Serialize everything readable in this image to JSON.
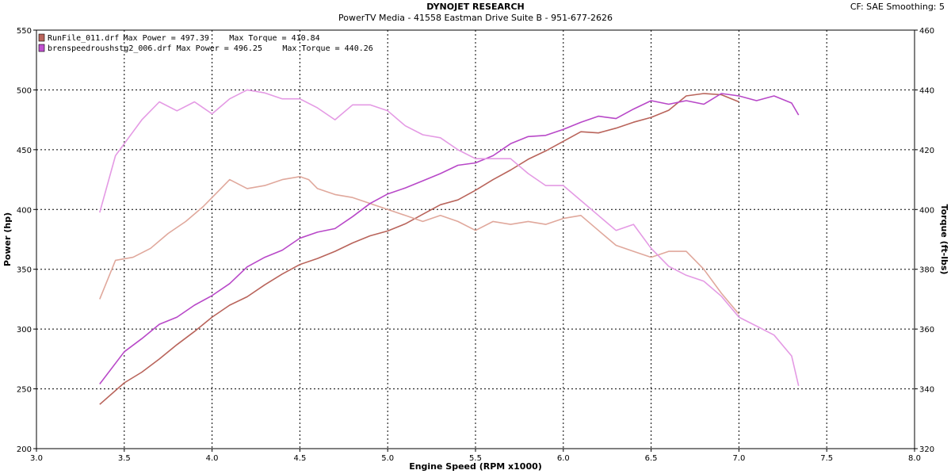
{
  "header": {
    "title": "DYNOJET RESEARCH",
    "subtitle": "PowerTV Media - 41558 Eastman Drive Suite B - 951-677-2626",
    "correction": "CF: SAE  Smoothing: 5"
  },
  "chart_data": {
    "type": "line",
    "xlabel": "Engine Speed (RPM x1000)",
    "ylabel": "Power (hp)",
    "y2label": "Torque (ft-lbs)",
    "xlim": [
      3.0,
      8.0
    ],
    "ylim": [
      200,
      550
    ],
    "y2lim": [
      320,
      460
    ],
    "grid": true,
    "x_ticks": [
      "3.0",
      "3.5",
      "4.0",
      "4.5",
      "5.0",
      "5.5",
      "6.0",
      "6.5",
      "7.0",
      "7.5",
      "8.0"
    ],
    "y_ticks": [
      "200",
      "250",
      "300",
      "350",
      "400",
      "450",
      "500",
      "550"
    ],
    "y2_ticks": [
      "320",
      "340",
      "360",
      "380",
      "400",
      "420",
      "440",
      "460"
    ],
    "legend_position": "top-left",
    "legend": [
      {
        "name": "RunFile_011.drf",
        "max_power_label": "Max Power = 497.39",
        "max_torque_label": "Max Torque = 410.84",
        "color": "#b9645b"
      },
      {
        "name": "brenspeedroushstg2_006.drf",
        "max_power_label": "Max Power = 496.25",
        "max_torque_label": "Max Torque = 440.26",
        "color": "#c050d0"
      }
    ],
    "series": [
      {
        "name": "RunFile_011.drf",
        "kind": "power",
        "axis": "left",
        "color": "#b9645b",
        "x": [
          3.36,
          3.5,
          3.6,
          3.7,
          3.8,
          3.9,
          4.0,
          4.1,
          4.2,
          4.3,
          4.4,
          4.5,
          4.6,
          4.7,
          4.8,
          4.9,
          5.0,
          5.1,
          5.2,
          5.3,
          5.4,
          5.5,
          5.6,
          5.7,
          5.8,
          5.9,
          6.0,
          6.1,
          6.2,
          6.3,
          6.4,
          6.5,
          6.6,
          6.7,
          6.8,
          6.9,
          7.0
        ],
        "y": [
          237,
          255,
          264,
          275,
          287,
          298,
          310,
          320,
          327,
          337,
          346,
          354,
          359,
          365,
          372,
          378,
          382,
          388,
          396,
          404,
          408,
          416,
          425,
          433,
          442,
          449,
          457,
          465,
          464,
          468,
          473,
          477,
          483,
          495,
          497,
          496,
          490
        ]
      },
      {
        "name": "RunFile_011.drf",
        "kind": "torque",
        "axis": "right",
        "color": "#e0a89c",
        "x": [
          3.36,
          3.45,
          3.55,
          3.65,
          3.75,
          3.85,
          3.95,
          4.05,
          4.1,
          4.2,
          4.3,
          4.4,
          4.5,
          4.55,
          4.6,
          4.7,
          4.8,
          4.9,
          5.0,
          5.1,
          5.2,
          5.3,
          5.4,
          5.5,
          5.6,
          5.7,
          5.8,
          5.9,
          6.0,
          6.1,
          6.2,
          6.3,
          6.4,
          6.5,
          6.6,
          6.7,
          6.8,
          6.9,
          7.0
        ],
        "y": [
          370,
          383,
          384,
          387,
          392,
          396,
          401,
          407,
          410,
          407,
          408,
          410,
          411,
          410,
          407,
          405,
          404,
          402,
          400,
          398,
          396,
          398,
          396,
          393,
          396,
          395,
          396,
          395,
          397,
          398,
          393,
          388,
          386,
          384,
          386,
          386,
          380,
          372,
          365
        ]
      },
      {
        "name": "brenspeedroushstg2_006.drf",
        "kind": "power",
        "axis": "left",
        "color": "#b848c8",
        "x": [
          3.36,
          3.5,
          3.6,
          3.7,
          3.8,
          3.9,
          4.0,
          4.1,
          4.2,
          4.3,
          4.4,
          4.5,
          4.6,
          4.7,
          4.8,
          4.9,
          5.0,
          5.1,
          5.2,
          5.3,
          5.4,
          5.5,
          5.6,
          5.7,
          5.8,
          5.9,
          6.0,
          6.1,
          6.2,
          6.3,
          6.4,
          6.5,
          6.6,
          6.7,
          6.8,
          6.9,
          7.0,
          7.1,
          7.2,
          7.3,
          7.34
        ],
        "y": [
          254,
          281,
          292,
          304,
          310,
          320,
          328,
          338,
          352,
          360,
          366,
          376,
          381,
          384,
          394,
          405,
          413,
          418,
          424,
          430,
          437,
          439,
          445,
          455,
          461,
          462,
          467,
          473,
          478,
          476,
          484,
          491,
          488,
          491,
          488,
          497,
          495,
          491,
          495,
          489,
          479
        ]
      },
      {
        "name": "brenspeedroushstg2_006.drf",
        "kind": "torque",
        "axis": "right",
        "color": "#e49ae4",
        "x": [
          3.36,
          3.45,
          3.55,
          3.6,
          3.7,
          3.8,
          3.9,
          4.0,
          4.1,
          4.2,
          4.3,
          4.4,
          4.5,
          4.6,
          4.7,
          4.8,
          4.9,
          5.0,
          5.1,
          5.2,
          5.3,
          5.4,
          5.5,
          5.6,
          5.7,
          5.8,
          5.9,
          6.0,
          6.1,
          6.2,
          6.3,
          6.4,
          6.5,
          6.6,
          6.7,
          6.8,
          6.9,
          7.0,
          7.1,
          7.2,
          7.3,
          7.34
        ],
        "y": [
          399,
          418,
          426,
          430,
          436,
          433,
          436,
          432,
          437,
          440,
          439,
          437,
          437,
          434,
          430,
          435,
          435,
          433,
          428,
          425,
          424,
          420,
          417,
          417,
          417,
          412,
          408,
          408,
          403,
          398,
          393,
          395,
          387,
          381,
          378,
          376,
          371,
          364,
          361,
          358,
          351,
          341
        ]
      }
    ]
  }
}
